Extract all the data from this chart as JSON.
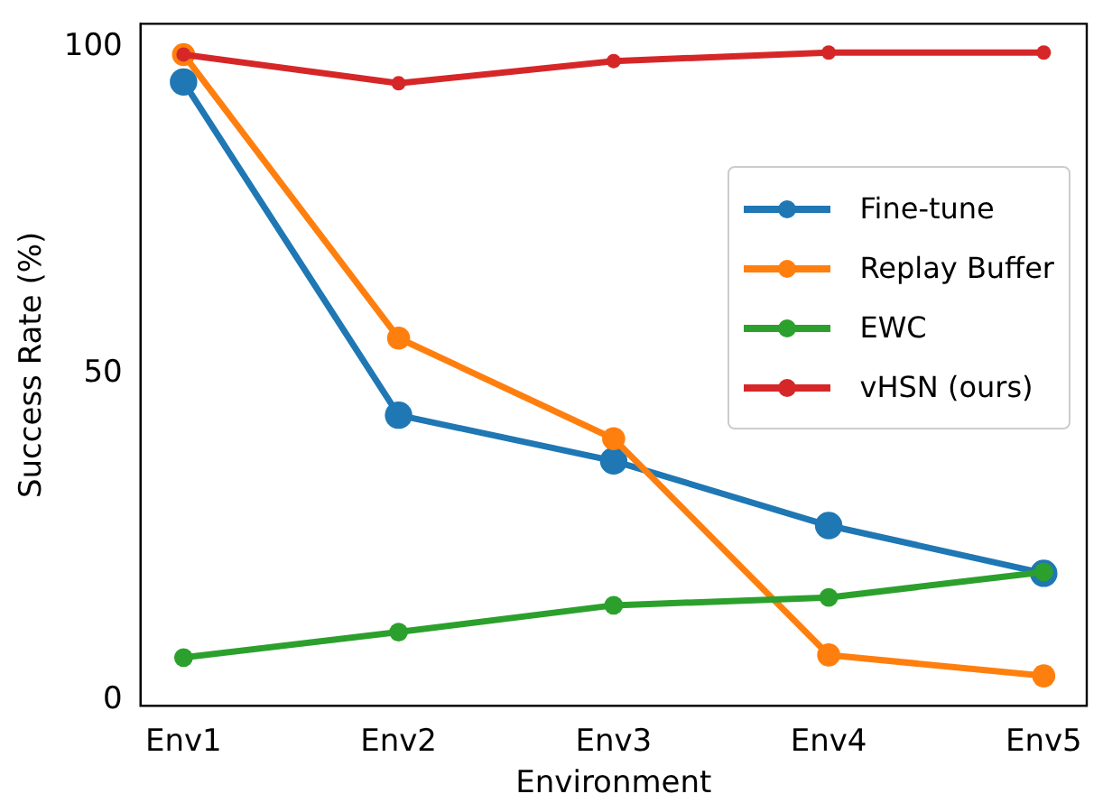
{
  "chart_data": {
    "type": "line",
    "xlabel": "Environment",
    "ylabel": "Success Rate (%)",
    "categories": [
      "Env1",
      "Env2",
      "Env3",
      "Env4",
      "Env5"
    ],
    "series": [
      {
        "name": "Fine-tune",
        "color": "#1f77b4",
        "values": [
          94.7,
          43.7,
          36.7,
          26.8,
          19.5
        ]
      },
      {
        "name": "Replay Buffer",
        "color": "#ff7f0e",
        "values": [
          98.9,
          55.5,
          40.1,
          7,
          3.8
        ]
      },
      {
        "name": "EWC",
        "color": "#2ca02c",
        "values": [
          6.6,
          10.5,
          14.6,
          15.8,
          19.7
        ]
      },
      {
        "name": "vHSN (ours)",
        "color": "#d62728",
        "values": [
          98.9,
          94.5,
          97.9,
          99.2,
          99.2
        ]
      }
    ],
    "ylim": [
      -0.8,
      103.6
    ],
    "yticks": [
      0,
      50,
      100
    ],
    "grid": false,
    "legend": "right",
    "marker": "circle",
    "line_style": "solid"
  }
}
